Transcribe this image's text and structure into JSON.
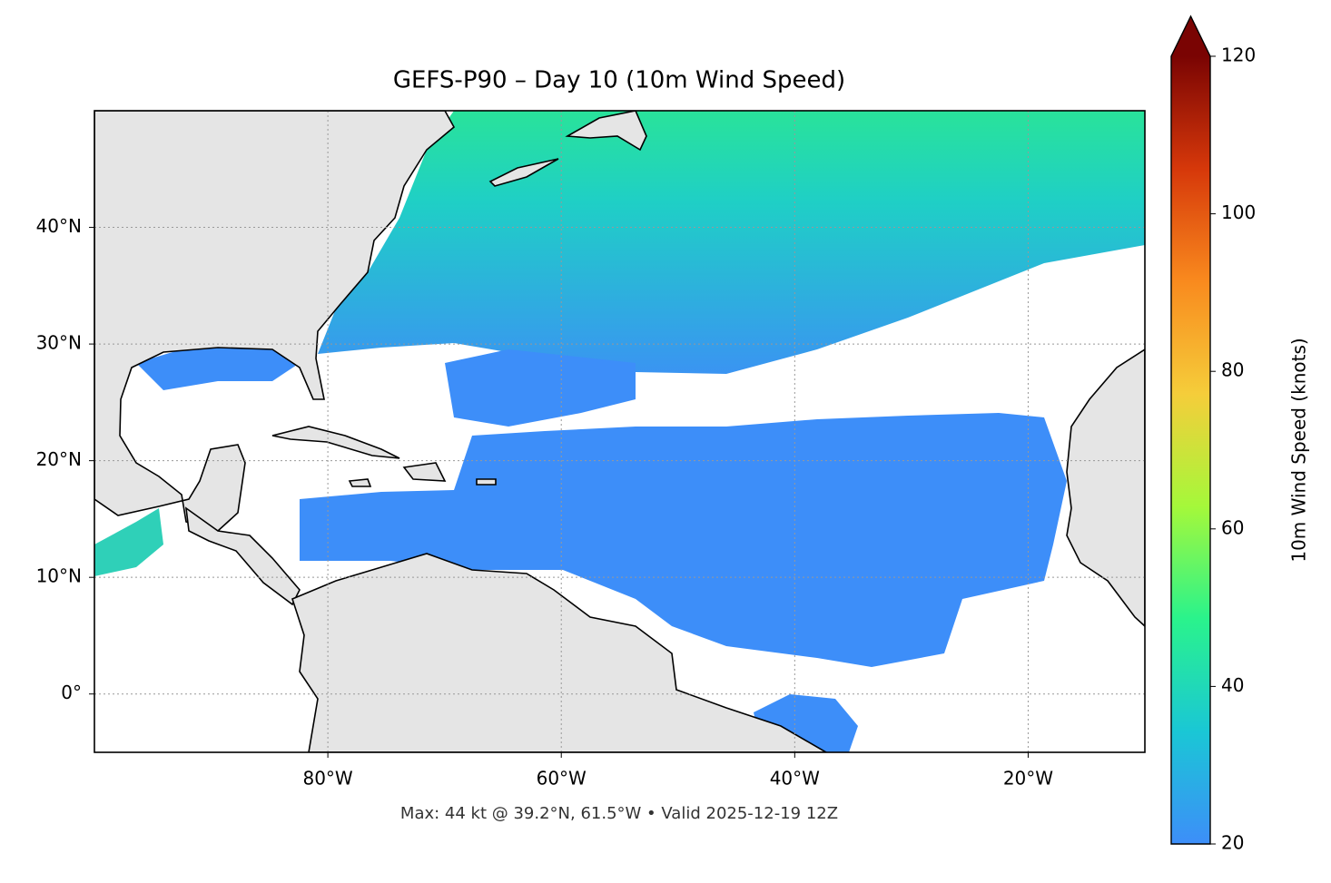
{
  "chart_data": {
    "type": "map",
    "title": "GEFS-P90 – Day 10 (10m Wind Speed)",
    "xlim": [
      -100,
      -10
    ],
    "ylim": [
      -5,
      50
    ],
    "xticks": [
      {
        "value": -80,
        "label": "80°W"
      },
      {
        "value": -60,
        "label": "60°W"
      },
      {
        "value": -40,
        "label": "40°W"
      },
      {
        "value": -20,
        "label": "20°W"
      }
    ],
    "yticks": [
      {
        "value": 0,
        "label": "0°"
      },
      {
        "value": 10,
        "label": "10°N"
      },
      {
        "value": 20,
        "label": "20°N"
      },
      {
        "value": 30,
        "label": "30°N"
      },
      {
        "value": 40,
        "label": "40°N"
      }
    ],
    "grid": true,
    "colorbar": {
      "label": "10m Wind Speed (knots)",
      "lim": [
        20,
        120
      ],
      "ticks": [
        20,
        40,
        60,
        80,
        100,
        120
      ],
      "extend": "max",
      "colors": [
        "#3d8ef9",
        "#1ac7d5",
        "#2af38c",
        "#a5f83a",
        "#f5cd3a",
        "#f98a1e",
        "#d6380a",
        "#7a0403"
      ]
    },
    "annotation": "Max: 44 kt @ 39.2°N, 61.5°W • Valid 2025-12-19 12Z"
  }
}
